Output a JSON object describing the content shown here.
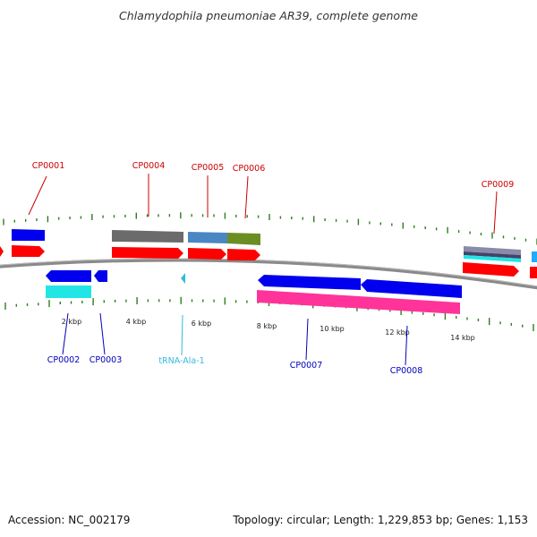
{
  "title": "Chlamydophila pneumoniae AR39, complete genome",
  "footer": {
    "accession": "Accession: NC_002179",
    "stats": "Topology: circular; Length: 1,229,853 bp; Genes: 1,153"
  },
  "colors": {
    "backbone": "#8a8a8a",
    "tick": "#2e7d1e",
    "label_top": "#cc0000",
    "label_bottom": "#0000bb",
    "label_trna": "#33bbdd",
    "gene_red": "#ff0000",
    "gene_blue": "#0000ee",
    "gene_cyan": "#22e6e6",
    "gene_magenta": "#ff3399",
    "gene_grey": "#6b6b6b",
    "gene_steel": "#4a86c4",
    "gene_olive": "#6b8e23"
  },
  "ruler": {
    "labels": [
      "2 kbp",
      "4 kbp",
      "6 kbp",
      "8 kbp",
      "10 kbp",
      "12 kbp",
      "14 kbp"
    ]
  },
  "labels_top": [
    "CP0001",
    "CP0004",
    "CP0005",
    "CP0006",
    "CP0009"
  ],
  "labels_bottom": [
    "CP0002",
    "CP0003",
    "tRNA-Ala-1",
    "CP0007",
    "CP0008"
  ]
}
